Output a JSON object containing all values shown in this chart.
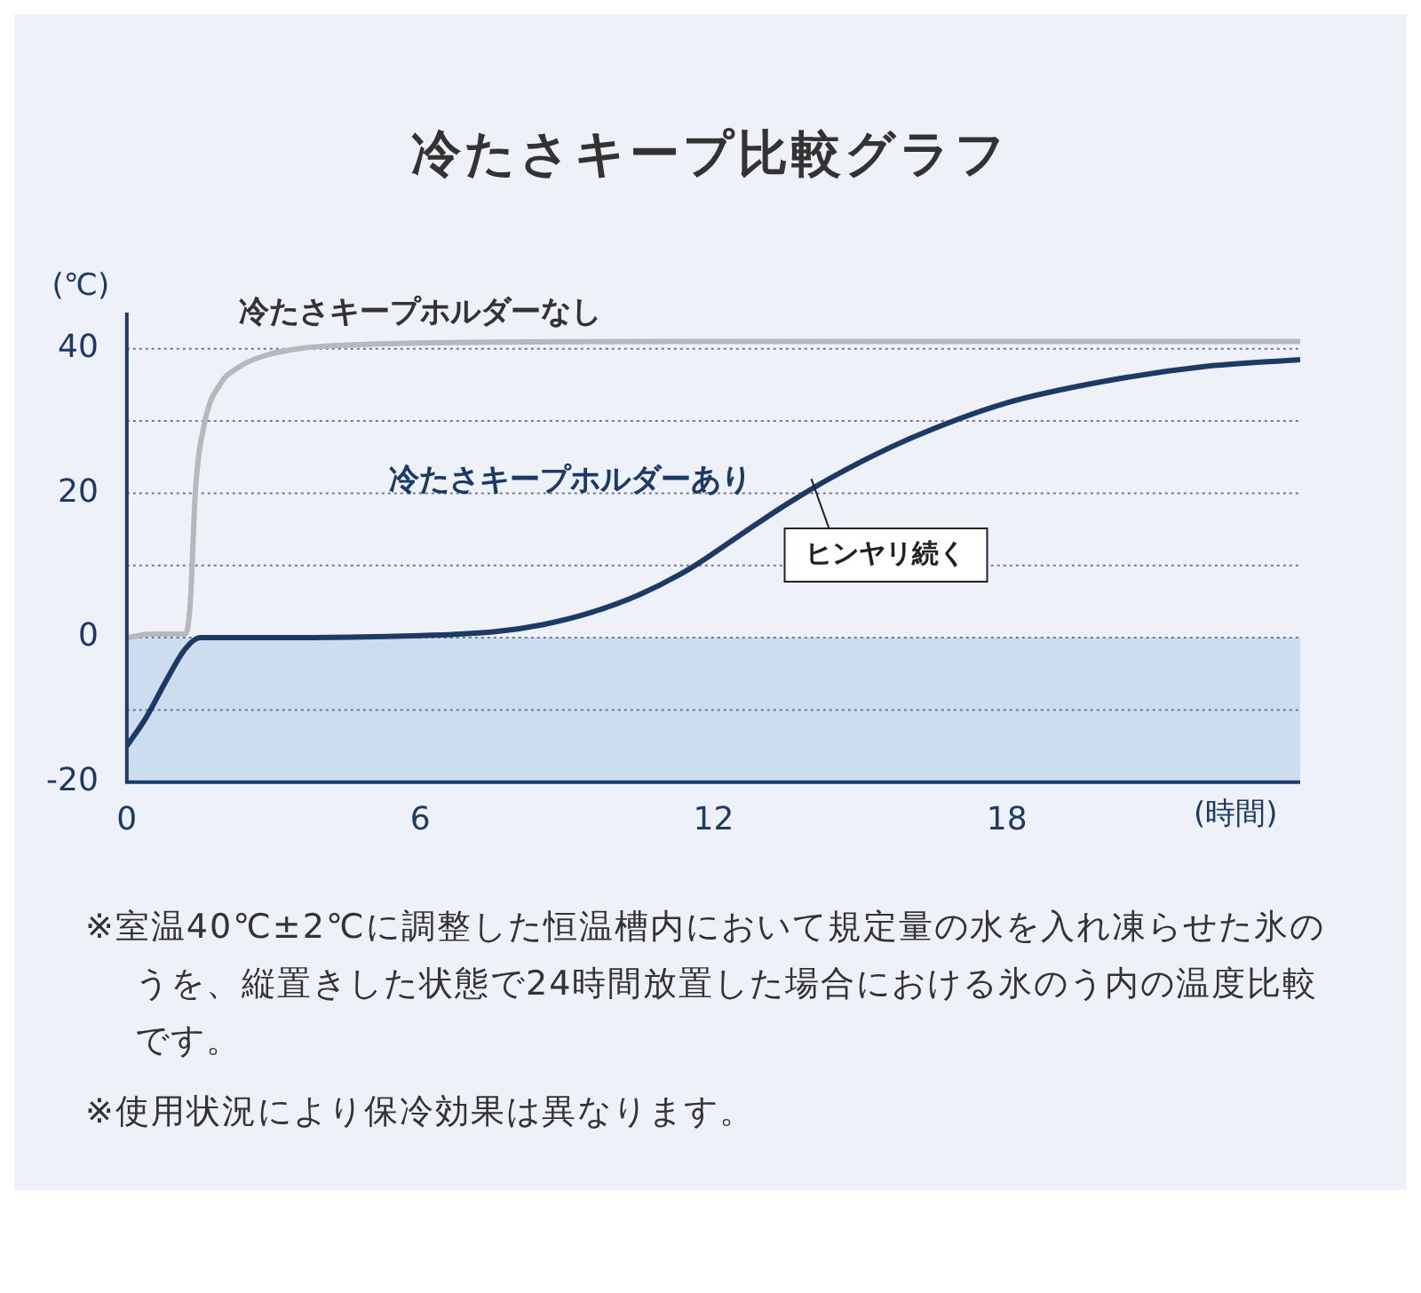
{
  "chart_data": {
    "type": "line",
    "title": "冷たさキープ比較グラフ",
    "xlabel": "(時間)",
    "ylabel": "(℃)",
    "xlim": [
      0,
      24
    ],
    "xticks": [
      0,
      6,
      12,
      18
    ],
    "ylim": [
      -20,
      45
    ],
    "yticks": [
      -20,
      {
        "value": -10,
        "label": null
      },
      0,
      {
        "value": 10,
        "label": null
      },
      20,
      {
        "value": 30,
        "label": null
      },
      40
    ],
    "grid": "y",
    "legend": false,
    "marker": "none",
    "line_style": "solid",
    "bands": [
      {
        "axis": "y",
        "from": -20,
        "to": 0,
        "color": "#cddcee"
      }
    ],
    "series": [
      {
        "name": "冷たさキープホルダーなし",
        "color": "#b5b9be",
        "x": [
          0,
          0.5,
          1.2,
          1.3,
          1.4,
          1.6,
          1.9,
          2.3,
          2.8,
          3.5,
          4.5,
          6,
          12,
          18,
          24
        ],
        "values": [
          0,
          0.5,
          0.5,
          5,
          20,
          30,
          35,
          37.5,
          39,
          40,
          40.5,
          40.8,
          41,
          41,
          41
        ]
      },
      {
        "name": "冷たさキープホルダーあり",
        "color": "#1b3a66",
        "x": [
          0,
          0.4,
          0.8,
          1.2,
          1.5,
          3,
          6,
          7.5,
          8.5,
          9.5,
          10.5,
          11.5,
          12.5,
          13.5,
          14.5,
          16,
          18,
          20,
          22,
          24
        ],
        "values": [
          -15,
          -11,
          -6,
          -1.5,
          0,
          0,
          0.3,
          0.8,
          1.8,
          3.5,
          6,
          9.5,
          14,
          18.5,
          22.5,
          27.5,
          32.5,
          35.5,
          37.5,
          38.5
        ]
      }
    ],
    "annotations": [
      {
        "text": "ヒンヤリ続く",
        "x": 14,
        "y": 22
      },
      "※室温40℃±2℃に調整した恒温槽内において規定量の水を入れ凍らせた氷のうを、縦置きした状態で24時間放置した場合における氷のう内の温度比較です。",
      "※使用状況により保冷効果は異なります。"
    ]
  }
}
